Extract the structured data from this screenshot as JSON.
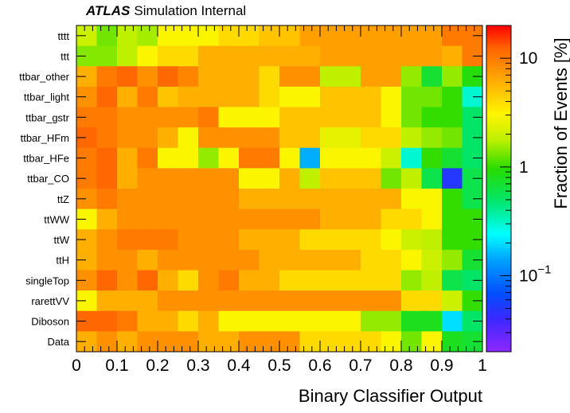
{
  "header": {
    "experiment": "ATLAS",
    "label": "Simulation Internal"
  },
  "chart_data": {
    "type": "heatmap",
    "xlabel": "Binary Classifier Output",
    "zlabel": "Fraction of Events [%]",
    "xlim": [
      0,
      1
    ],
    "x_bins": 20,
    "x_ticks": [
      "0",
      "0.1",
      "0.2",
      "0.3",
      "0.4",
      "0.5",
      "0.6",
      "0.7",
      "0.8",
      "0.9",
      "1"
    ],
    "z_scale": "log",
    "zlim": [
      0.02,
      20
    ],
    "z_ticks": [
      {
        "value": 10,
        "label": "10"
      },
      {
        "value": 1,
        "label": "1"
      },
      {
        "value": 0.1,
        "label": "10",
        "exponent": "−1"
      }
    ],
    "grid": false,
    "categories": [
      "tttt",
      "ttt",
      "ttbar_other",
      "ttbar_light",
      "ttbar_gstr",
      "ttbar_HFm",
      "ttbar_HFe",
      "ttbar_CO",
      "ttZ",
      "ttWW",
      "ttW",
      "ttH",
      "singleTop",
      "rarettVV",
      "Diboson",
      "Data"
    ],
    "values": [
      [
        2.0,
        1.3,
        1.8,
        1.6,
        3.0,
        3.0,
        3.0,
        4.0,
        4.0,
        5.0,
        5.0,
        7.0,
        7.0,
        7.0,
        7.0,
        7.0,
        7.0,
        7.0,
        10.0,
        10.0
      ],
      [
        1.4,
        1.4,
        1.8,
        3.0,
        4.0,
        4.0,
        6.0,
        6.0,
        6.0,
        6.0,
        6.0,
        6.0,
        7.0,
        7.0,
        7.0,
        7.0,
        7.0,
        7.0,
        6.0,
        10.0
      ],
      [
        6.0,
        10.0,
        12.0,
        8.0,
        12.0,
        9.0,
        6.0,
        6.0,
        6.0,
        4.0,
        8.0,
        8.0,
        1.8,
        1.8,
        7.0,
        7.0,
        1.5,
        0.7,
        1.5,
        0.9
      ],
      [
        8.0,
        12.0,
        6.0,
        10.0,
        5.0,
        6.0,
        6.0,
        6.0,
        6.0,
        4.0,
        3.0,
        3.0,
        5.0,
        5.0,
        5.0,
        3.0,
        1.3,
        1.3,
        1.0,
        0.3
      ],
      [
        10.0,
        10.0,
        8.0,
        8.0,
        8.0,
        8.0,
        10.0,
        3.0,
        3.0,
        3.0,
        5.0,
        5.0,
        5.0,
        5.0,
        5.0,
        3.0,
        1.3,
        1.0,
        1.0,
        0.5
      ],
      [
        12.0,
        10.0,
        8.0,
        8.0,
        6.0,
        3.0,
        8.0,
        8.0,
        8.0,
        8.0,
        5.0,
        5.0,
        2.5,
        2.5,
        4.0,
        4.0,
        1.8,
        1.5,
        1.3,
        0.5
      ],
      [
        10.0,
        12.0,
        6.0,
        10.0,
        3.0,
        3.0,
        1.5,
        3.0,
        10.0,
        10.0,
        3.0,
        0.15,
        3.0,
        3.0,
        3.0,
        2.0,
        0.3,
        1.0,
        0.7,
        0.5
      ],
      [
        10.0,
        12.0,
        6.0,
        8.0,
        8.0,
        8.0,
        8.0,
        8.0,
        3.0,
        3.0,
        6.0,
        1.8,
        5.0,
        5.0,
        5.0,
        1.3,
        1.8,
        0.6,
        0.05,
        0.6
      ],
      [
        8.0,
        10.0,
        8.0,
        8.0,
        8.0,
        8.0,
        8.0,
        8.0,
        6.0,
        6.0,
        6.0,
        6.0,
        6.0,
        6.0,
        6.0,
        6.0,
        3.0,
        3.0,
        1.0,
        0.6
      ],
      [
        3.0,
        6.0,
        8.0,
        8.0,
        8.0,
        8.0,
        8.0,
        8.0,
        8.0,
        8.0,
        8.0,
        8.0,
        6.0,
        6.0,
        6.0,
        4.0,
        4.0,
        3.0,
        1.0,
        1.0
      ],
      [
        6.0,
        8.0,
        10.0,
        10.0,
        10.0,
        8.0,
        8.0,
        8.0,
        6.0,
        6.0,
        6.0,
        4.0,
        4.0,
        4.0,
        4.0,
        3.0,
        2.0,
        1.8,
        1.0,
        1.0
      ],
      [
        6.0,
        8.0,
        8.0,
        6.0,
        8.0,
        8.0,
        8.0,
        8.0,
        8.0,
        6.0,
        6.0,
        6.0,
        6.0,
        6.0,
        4.0,
        4.0,
        3.0,
        2.0,
        1.5,
        0.7
      ],
      [
        8.0,
        12.0,
        8.0,
        12.0,
        6.0,
        4.0,
        8.0,
        10.0,
        6.0,
        6.0,
        4.0,
        4.0,
        4.0,
        4.0,
        4.0,
        4.0,
        1.5,
        1.8,
        0.6,
        0.5
      ],
      [
        3.0,
        6.0,
        6.0,
        6.0,
        8.0,
        8.0,
        8.0,
        8.0,
        8.0,
        8.0,
        8.0,
        8.0,
        8.0,
        8.0,
        8.0,
        8.0,
        4.0,
        4.0,
        2.0,
        1.0
      ],
      [
        12.0,
        12.0,
        10.0,
        6.0,
        6.0,
        4.0,
        6.0,
        3.0,
        3.0,
        3.0,
        3.0,
        3.0,
        3.0,
        3.0,
        1.5,
        1.5,
        0.8,
        0.8,
        0.2,
        0.5
      ],
      [
        6.0,
        8.0,
        6.0,
        8.0,
        8.0,
        8.0,
        6.0,
        6.0,
        8.0,
        8.0,
        8.0,
        4.0,
        4.0,
        4.0,
        4.0,
        3.0,
        1.3,
        3.0,
        0.8,
        0.7
      ]
    ]
  }
}
